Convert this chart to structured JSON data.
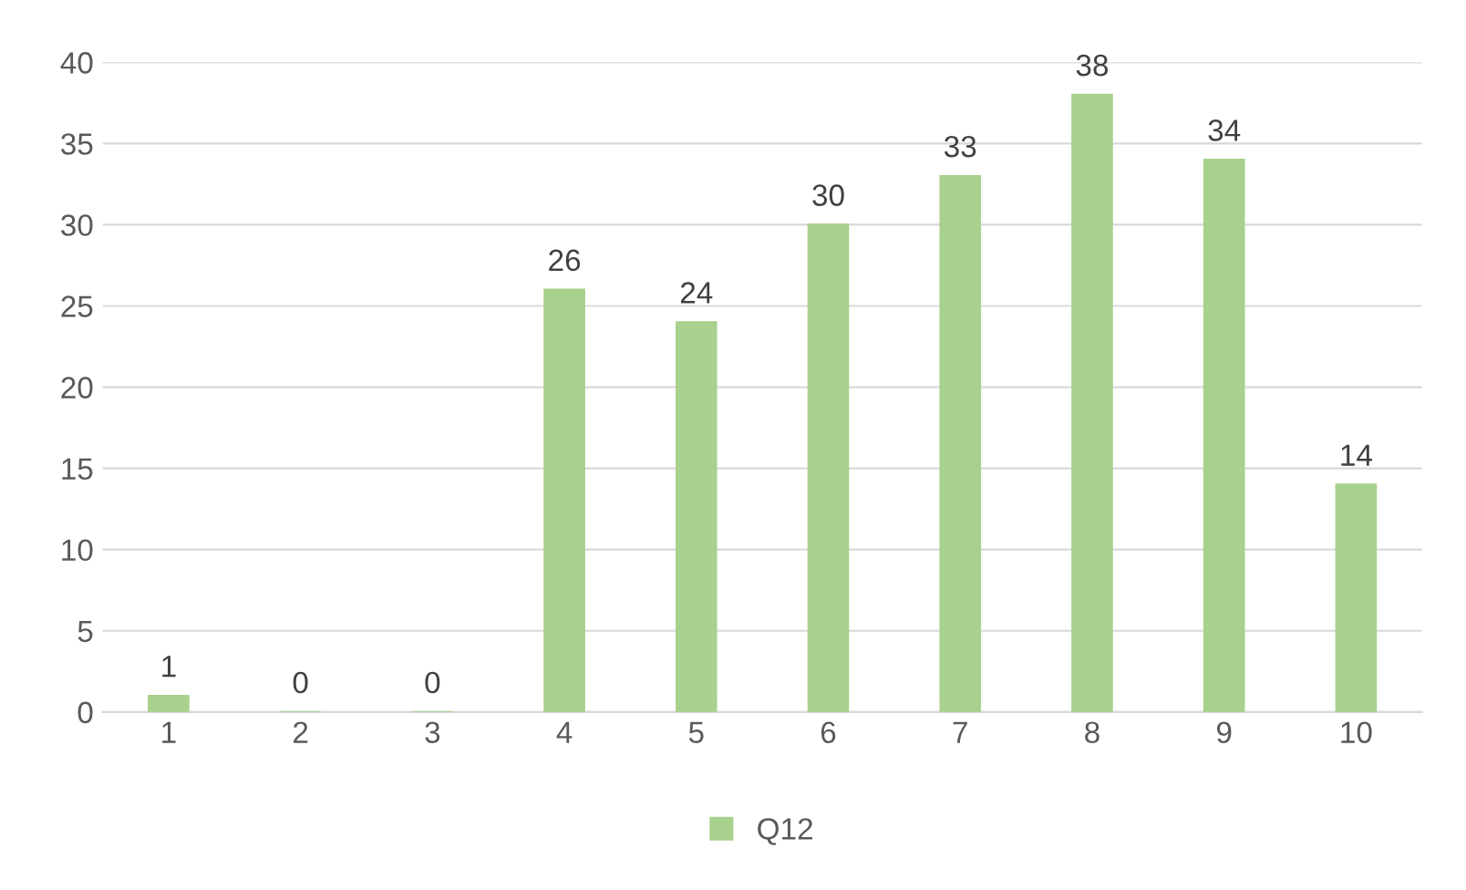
{
  "chart_data": {
    "type": "bar",
    "categories": [
      "1",
      "2",
      "3",
      "4",
      "5",
      "6",
      "7",
      "8",
      "9",
      "10"
    ],
    "series": [
      {
        "name": "Q12",
        "color": "#a9d18e",
        "values": [
          1,
          0,
          0,
          26,
          24,
          30,
          33,
          38,
          34,
          14
        ]
      }
    ],
    "ylim": [
      0,
      40
    ],
    "yticks": [
      0,
      5,
      10,
      15,
      20,
      25,
      30,
      35,
      40
    ],
    "grid": "y",
    "legend": "bottom",
    "data_labels": true
  }
}
